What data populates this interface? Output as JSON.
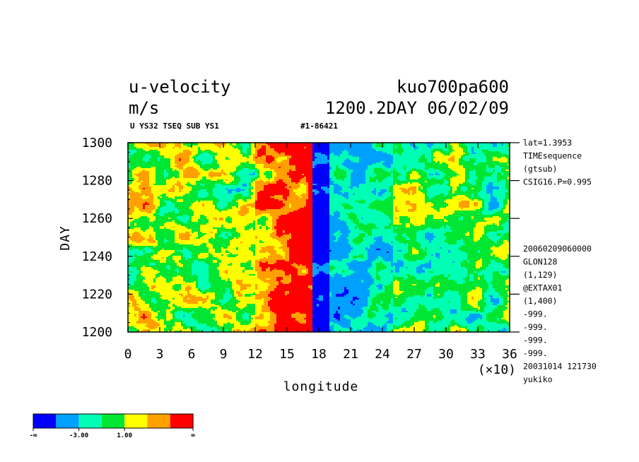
{
  "header": {
    "title_left": "u-velocity",
    "title_right": "kuo700pa600",
    "units": "m/s",
    "time_label": "1200.2DAY 06/02/09",
    "subtitle_left": "U YS32 TSEQ SUB YS1",
    "subtitle_right": "#1-86421"
  },
  "side_info": {
    "top": [
      "lat=1.3953",
      "TIMEsequence",
      "(gtsub)",
      "CSIG16.P=0.995"
    ],
    "bottom": [
      "20060209060000",
      "GLON128",
      "(1,129)",
      "@EXTAX01",
      "(1,400)",
      "-999.",
      "-999.",
      "-999.",
      "-999.",
      "20031014 121730",
      "yukiko"
    ]
  },
  "x_multiplier": "(×10)",
  "colorbar": {
    "colors": [
      "#0000ff",
      "#00a0ff",
      "#00ffb4",
      "#00e632",
      "#ffff00",
      "#ffa000",
      "#ff0000"
    ],
    "labels": [
      "-∞",
      "-3.00",
      "1.00",
      "∞"
    ]
  },
  "chart_data": {
    "type": "heatmap",
    "title": "u-velocity",
    "xlabel": "longitude",
    "ylabel": "DAY",
    "xlim": [
      0,
      36
    ],
    "ylim": [
      1200,
      1300
    ],
    "xticks": [
      "0",
      "3",
      "6",
      "9",
      "12",
      "15",
      "18",
      "21",
      "24",
      "27",
      "30",
      "33",
      "36"
    ],
    "yticks": [
      "1200",
      "1220",
      "1240",
      "1260",
      "1280",
      "1300"
    ],
    "x_scale_factor": 10,
    "color_levels": [
      "-inf",
      "-3.00",
      "1.00",
      "inf"
    ],
    "field_description": {
      "strong_positive_band_x": [
        12.5,
        17.5
      ],
      "strong_negative_band_x": [
        17.8,
        19.0
      ],
      "background_band_x_left": [
        0,
        12
      ],
      "background_band_x_right": [
        19,
        36
      ]
    }
  }
}
